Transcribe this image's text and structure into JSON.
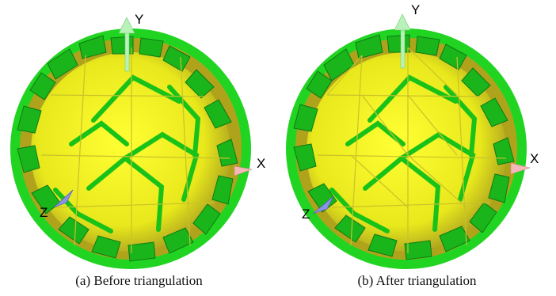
{
  "figure": {
    "panels": [
      {
        "id": "a",
        "caption": "(a) Before triangulation",
        "axes": {
          "x": "X",
          "y": "Y",
          "z": "Z"
        }
      },
      {
        "id": "b",
        "caption": "(b) After triangulation",
        "axes": {
          "x": "X",
          "y": "Y",
          "z": "Z"
        }
      }
    ],
    "colors": {
      "face_yellow": "#f2f21a",
      "face_dark_yellow": "#b4a81e",
      "edge_green": "#2ee02e",
      "edge_dark_green": "#129a22",
      "axis_x": "#f4b8b8",
      "axis_y": "#b9f2b9",
      "axis_z": "#8a92e6"
    }
  }
}
